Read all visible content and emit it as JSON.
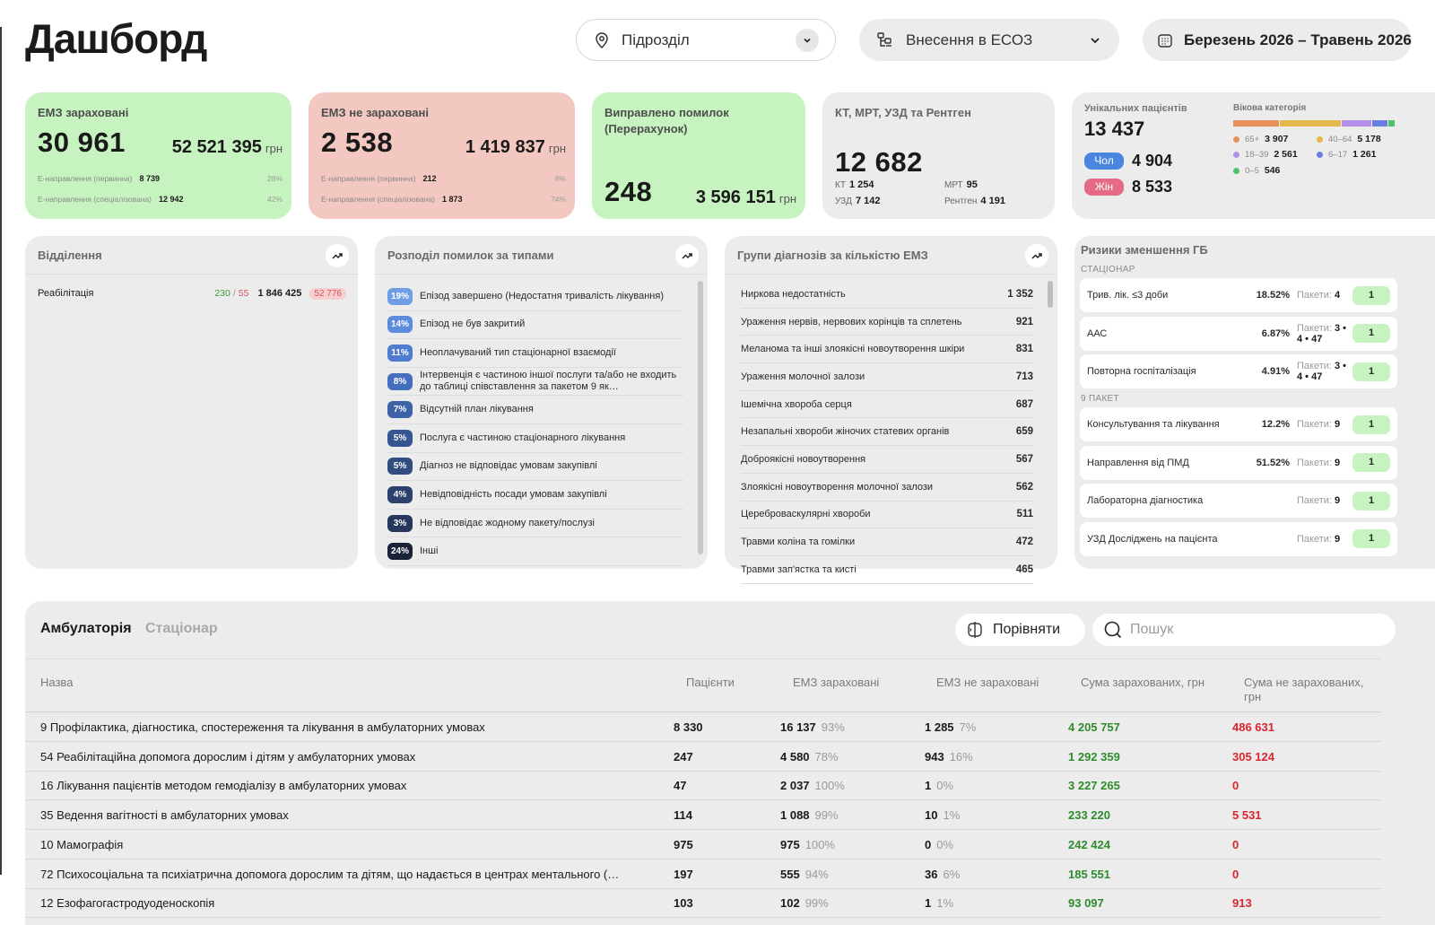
{
  "title": "Дашборд",
  "header": {
    "subdivision_placeholder": "Підрозділ",
    "eco_label": "Внесення в ЕСОЗ",
    "date_range": "Березень 2026 – Травень 2026"
  },
  "cards": {
    "accepted": {
      "title": "ЕМЗ зараховані",
      "count": "30 961",
      "sum": "52 521 395",
      "unit": "грн",
      "r1_label": "Е-направлення (первинна)",
      "r1_val": "8 739",
      "r1_pct": "28%",
      "r2_label": "Е-направлення (спеціалізована)",
      "r2_val": "12 942",
      "r2_pct": "42%"
    },
    "rejected": {
      "title": "ЕМЗ не зараховані",
      "count": "2 538",
      "sum": "1 419 837",
      "unit": "грн",
      "r1_label": "Е-направлення (первинна)",
      "r1_val": "212",
      "r1_pct": "8%",
      "r2_label": "Е-направлення (спеціалізована)",
      "r2_val": "1 873",
      "r2_pct": "74%"
    },
    "fixed": {
      "title_l1": "Виправлено помилок",
      "title_l2": "(Перерахунок)",
      "count": "248",
      "sum": "3 596 151",
      "unit": "грн"
    },
    "imaging": {
      "title": "КТ, МРТ, УЗД та Рентген",
      "total": "12 682",
      "kt_label": "КТ",
      "kt": "1 254",
      "mrt_label": "МРТ",
      "mrt": "95",
      "uzd_label": "УЗД",
      "uzd": "7 142",
      "xray_label": "Рентген",
      "xray": "4 191"
    },
    "patients": {
      "title": "Унікальних пацієнтів",
      "total": "13 437",
      "male_label": "Чол",
      "male": "4 904",
      "female_label": "Жін",
      "female": "8 533",
      "age_title": "Вікова категорія",
      "ages": [
        {
          "label": "65+",
          "value": "3 907",
          "color": "#e8905a"
        },
        {
          "label": "40–64",
          "value": "5 178",
          "color": "#e6b84c"
        },
        {
          "label": "18–39",
          "value": "2 561",
          "color": "#b38ee8"
        },
        {
          "label": "6–17",
          "value": "1 261",
          "color": "#6b7fe0"
        },
        {
          "label": "0–5",
          "value": "546",
          "color": "#4fc36b"
        }
      ]
    }
  },
  "departments": {
    "title": "Відділення",
    "rows": [
      {
        "name": "Реабілітація",
        "ok": "230",
        "sep": "/",
        "bad": "55",
        "sum": "1 846 425",
        "badsum": "52 776"
      }
    ]
  },
  "errors": {
    "title": "Розподіл помилок за типами",
    "items": [
      {
        "pct": "19%",
        "text": "Епізод завершено (Недостатня тривалість лікування)",
        "color": "#6f9ee6"
      },
      {
        "pct": "14%",
        "text": "Епізод не був закритий",
        "color": "#5d8bdc"
      },
      {
        "pct": "11%",
        "text": "Неоплачуваний тип стаціонарної взаємодії",
        "color": "#4f7ccf"
      },
      {
        "pct": "8%",
        "text": "Інтервенція є частиною іншої послуги та/або не входить до таблиці співставлення за пакетом 9 як…",
        "color": "#456ebd"
      },
      {
        "pct": "7%",
        "text": "Відсутній план лікування",
        "color": "#3e62a8"
      },
      {
        "pct": "5%",
        "text": "Послуга є частиною стаціонарного лікування",
        "color": "#375691"
      },
      {
        "pct": "5%",
        "text": "Діагноз не відповідає умовам закупівлі",
        "color": "#324d80"
      },
      {
        "pct": "4%",
        "text": "Невідповідність посади умовам закупівлі",
        "color": "#2c426d"
      },
      {
        "pct": "3%",
        "text": "Не відповідає жодному пакету/послузі",
        "color": "#25375a"
      },
      {
        "pct": "24%",
        "text": "Інші",
        "color": "#1a2238"
      }
    ]
  },
  "diagnoses": {
    "title": "Групи діагнозів за кількістю ЕМЗ",
    "items": [
      {
        "name": "Ниркова недостатність",
        "value": "1 352"
      },
      {
        "name": "Ураження нервів, нервових корінців та сплетень",
        "value": "921"
      },
      {
        "name": "Меланома та інші злоякісні новоутворення шкіри",
        "value": "831"
      },
      {
        "name": "Ураження молочної залози",
        "value": "713"
      },
      {
        "name": "Ішемічна хвороба серця",
        "value": "687"
      },
      {
        "name": "Незапальні хвороби жіночих статевих органів",
        "value": "659"
      },
      {
        "name": "Доброякісні новоутворення",
        "value": "567"
      },
      {
        "name": "Злоякісні новоутворення молочної залози",
        "value": "562"
      },
      {
        "name": "Цереброваскулярні хвороби",
        "value": "511"
      },
      {
        "name": "Травми коліна та гомілки",
        "value": "472"
      },
      {
        "name": "Травми зап'ястка та кисті",
        "value": "465"
      }
    ]
  },
  "risks": {
    "title": "Ризики зменшення ГБ",
    "section1": "СТАЦІОНАР",
    "s1": [
      {
        "name": "Трив. лік. ≤3 доби",
        "pct": "18.52%",
        "pk_label": "Пакети:",
        "pk": "4",
        "val": "1"
      },
      {
        "name": "ААС",
        "pct": "6.87%",
        "pk_label": "Пакети:",
        "pk": "3 • 4 • 47",
        "val": "1"
      },
      {
        "name": "Повторна госпіталізація",
        "pct": "4.91%",
        "pk_label": "Пакети:",
        "pk": "3 • 4 • 47",
        "val": "1"
      }
    ],
    "section2": "9 ПАКЕТ",
    "s2": [
      {
        "name": "Консультування та лікування",
        "pct": "12.2%",
        "pk_label": "Пакети:",
        "pk": "9",
        "val": "1"
      },
      {
        "name": "Направлення від ПМД",
        "pct": "51.52%",
        "pk_label": "Пакети:",
        "pk": "9",
        "val": "1"
      },
      {
        "name": "Лабораторна діагностика",
        "pct": "",
        "pk_label": "Пакети:",
        "pk": "9",
        "val": "1"
      },
      {
        "name": "УЗД Досліджень на пацієнта",
        "pct": "",
        "pk_label": "Пакети:",
        "pk": "9",
        "val": "1"
      }
    ]
  },
  "table": {
    "tab_active": "Амбулаторія",
    "tab_inactive": "Стаціонар",
    "compare_label": "Порівняти",
    "search_placeholder": "Пошук",
    "headers": {
      "name": "Назва",
      "patients": "Пацієнти",
      "acc": "ЕМЗ зараховані",
      "rej": "ЕМЗ не зараховані",
      "sum_acc": "Сума зарахованих, грн",
      "sum_rej_l1": "Сума не зарахованих,",
      "sum_rej_l2": "грн"
    },
    "rows": [
      {
        "name": "9 Профілактика, діагностика, спостереження та лікування в амбулаторних умовах",
        "patients": "8 330",
        "acc": "16 137",
        "acc_pct": "93%",
        "rej": "1 285",
        "rej_pct": "7%",
        "sum_acc": "4 205 757",
        "sum_rej": "486 631"
      },
      {
        "name": "54 Реабілітаційна допомога дорослим і дітям у амбулаторних умовах",
        "patients": "247",
        "acc": "4 580",
        "acc_pct": "78%",
        "rej": "943",
        "rej_pct": "16%",
        "sum_acc": "1 292 359",
        "sum_rej": "305 124"
      },
      {
        "name": "16 Лікування пацієнтів методом гемодіалізу в амбулаторних умовах",
        "patients": "47",
        "acc": "2 037",
        "acc_pct": "100%",
        "rej": "1",
        "rej_pct": "0%",
        "sum_acc": "3 227 265",
        "sum_rej": "0"
      },
      {
        "name": "35 Ведення вагітності в амбулаторних умовах",
        "patients": "114",
        "acc": "1 088",
        "acc_pct": "99%",
        "rej": "10",
        "rej_pct": "1%",
        "sum_acc": "233 220",
        "sum_rej": "5 531"
      },
      {
        "name": "10 Мамографія",
        "patients": "975",
        "acc": "975",
        "acc_pct": "100%",
        "rej": "0",
        "rej_pct": "0%",
        "sum_acc": "242 424",
        "sum_rej": "0"
      },
      {
        "name": "72 Психосоціальна та психіатрична допомога дорослим та дітям, що надається в центрах ментального (…",
        "patients": "197",
        "acc": "555",
        "acc_pct": "94%",
        "rej": "36",
        "rej_pct": "6%",
        "sum_acc": "185 551",
        "sum_rej": "0"
      },
      {
        "name": "12 Езофагогастродуоденоскопія",
        "patients": "103",
        "acc": "102",
        "acc_pct": "99%",
        "rej": "1",
        "rej_pct": "1%",
        "sum_acc": "93 097",
        "sum_rej": "913"
      }
    ]
  }
}
